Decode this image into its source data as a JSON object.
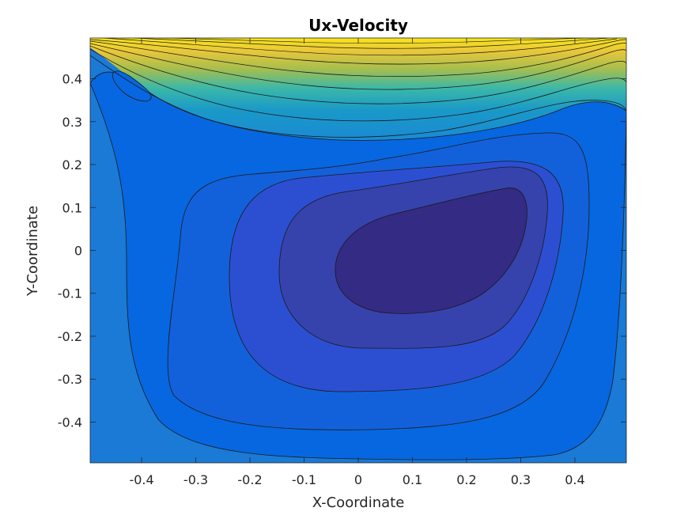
{
  "chart_data": {
    "type": "contour",
    "title": "Ux-Velocity",
    "xlabel": "X-Coordinate",
    "ylabel": "Y-Coordinate",
    "xlim": [
      -0.495,
      0.495
    ],
    "ylim": [
      -0.495,
      0.495
    ],
    "x_ticks": [
      -0.4,
      -0.3,
      -0.2,
      -0.1,
      0,
      0.1,
      0.2,
      0.3,
      0.4
    ],
    "y_ticks": [
      -0.4,
      -0.3,
      -0.2,
      -0.1,
      0,
      0.1,
      0.2,
      0.3,
      0.4
    ],
    "x_tick_labels": [
      "-0.4",
      "-0.3",
      "-0.2",
      "-0.1",
      "0",
      "0.1",
      "0.2",
      "0.3",
      "0.4"
    ],
    "y_tick_labels": [
      "-0.4",
      "-0.3",
      "-0.2",
      "-0.1",
      "0",
      "0.1",
      "0.2",
      "0.3",
      "0.4"
    ],
    "grid": false,
    "colormap": "parula",
    "colors": {
      "background_field": "#1a7ad6",
      "lowest": "#342b84",
      "top_high": "#f7e41c"
    }
  }
}
